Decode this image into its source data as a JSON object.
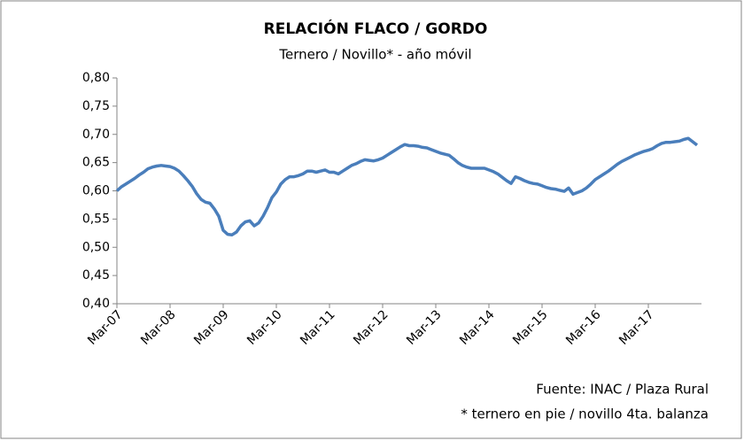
{
  "chart_data": {
    "type": "line",
    "title": "RELACIÓN FLACO / GORDO",
    "subtitle": "Ternero / Novillo* - año móvil",
    "notes": [
      "Fuente: INAC / Plaza Rural",
      "* ternero en pie / novillo 4ta. balanza"
    ],
    "categories": [
      "Mar-07",
      null,
      null,
      null,
      null,
      null,
      null,
      null,
      null,
      null,
      null,
      null,
      "Mar-08",
      null,
      null,
      null,
      null,
      null,
      null,
      null,
      null,
      null,
      null,
      null,
      "Mar-09",
      null,
      null,
      null,
      null,
      null,
      null,
      null,
      null,
      null,
      null,
      null,
      "Mar-10",
      null,
      null,
      null,
      null,
      null,
      null,
      null,
      null,
      null,
      null,
      null,
      "Mar-11",
      null,
      null,
      null,
      null,
      null,
      null,
      null,
      null,
      null,
      null,
      null,
      "Mar-12",
      null,
      null,
      null,
      null,
      null,
      null,
      null,
      null,
      null,
      null,
      null,
      "Mar-13",
      null,
      null,
      null,
      null,
      null,
      null,
      null,
      null,
      null,
      null,
      null,
      "Mar-14",
      null,
      null,
      null,
      null,
      null,
      null,
      null,
      null,
      null,
      null,
      null,
      "Mar-15",
      null,
      null,
      null,
      null,
      null,
      null,
      null,
      null,
      null,
      null,
      null,
      "Mar-16",
      null,
      null,
      null,
      null,
      null,
      null,
      null,
      null,
      null,
      null,
      null,
      "Mar-17",
      null,
      null,
      null,
      null,
      null,
      null,
      null,
      null,
      null,
      null,
      null
    ],
    "values": [
      0.6,
      0.607,
      0.612,
      0.617,
      0.622,
      0.628,
      0.633,
      0.639,
      0.642,
      0.644,
      0.645,
      0.644,
      0.643,
      0.64,
      0.635,
      0.627,
      0.618,
      0.608,
      0.595,
      0.585,
      0.58,
      0.578,
      0.568,
      0.555,
      0.53,
      0.523,
      0.522,
      0.527,
      0.538,
      0.545,
      0.547,
      0.538,
      0.543,
      0.555,
      0.57,
      0.588,
      0.598,
      0.612,
      0.62,
      0.625,
      0.625,
      0.627,
      0.63,
      0.635,
      0.635,
      0.633,
      0.635,
      0.637,
      0.633,
      0.633,
      0.63,
      0.635,
      0.64,
      0.645,
      0.648,
      0.652,
      0.655,
      0.654,
      0.653,
      0.655,
      0.658,
      0.663,
      0.668,
      0.673,
      0.678,
      0.682,
      0.68,
      0.68,
      0.679,
      0.677,
      0.676,
      0.673,
      0.67,
      0.667,
      0.665,
      0.663,
      0.657,
      0.65,
      0.645,
      0.642,
      0.64,
      0.64,
      0.64,
      0.64,
      0.637,
      0.634,
      0.63,
      0.624,
      0.618,
      0.613,
      0.625,
      0.622,
      0.618,
      0.615,
      0.613,
      0.612,
      0.609,
      0.606,
      0.604,
      0.603,
      0.601,
      0.599,
      0.605,
      0.594,
      0.597,
      0.6,
      0.605,
      0.612,
      0.62,
      0.625,
      0.63,
      0.635,
      0.641,
      0.647,
      0.652,
      0.656,
      0.66,
      0.664,
      0.667,
      0.67,
      0.672,
      0.675,
      0.68,
      0.684,
      0.686,
      0.686,
      0.687,
      0.688,
      0.691,
      0.693,
      0.687,
      0.681
    ],
    "color": "#4a7ebb",
    "ylim": [
      0.4,
      0.8
    ],
    "yticks": [
      {
        "value": 0.4,
        "label": "0,40"
      },
      {
        "value": 0.45,
        "label": "0,45"
      },
      {
        "value": 0.5,
        "label": "0,50"
      },
      {
        "value": 0.55,
        "label": "0,55"
      },
      {
        "value": 0.6,
        "label": "0,60"
      },
      {
        "value": 0.65,
        "label": "0,65"
      },
      {
        "value": 0.7,
        "label": "0,70"
      },
      {
        "value": 0.75,
        "label": "0,75"
      },
      {
        "value": 0.8,
        "label": "0,80"
      }
    ],
    "grid": false
  }
}
